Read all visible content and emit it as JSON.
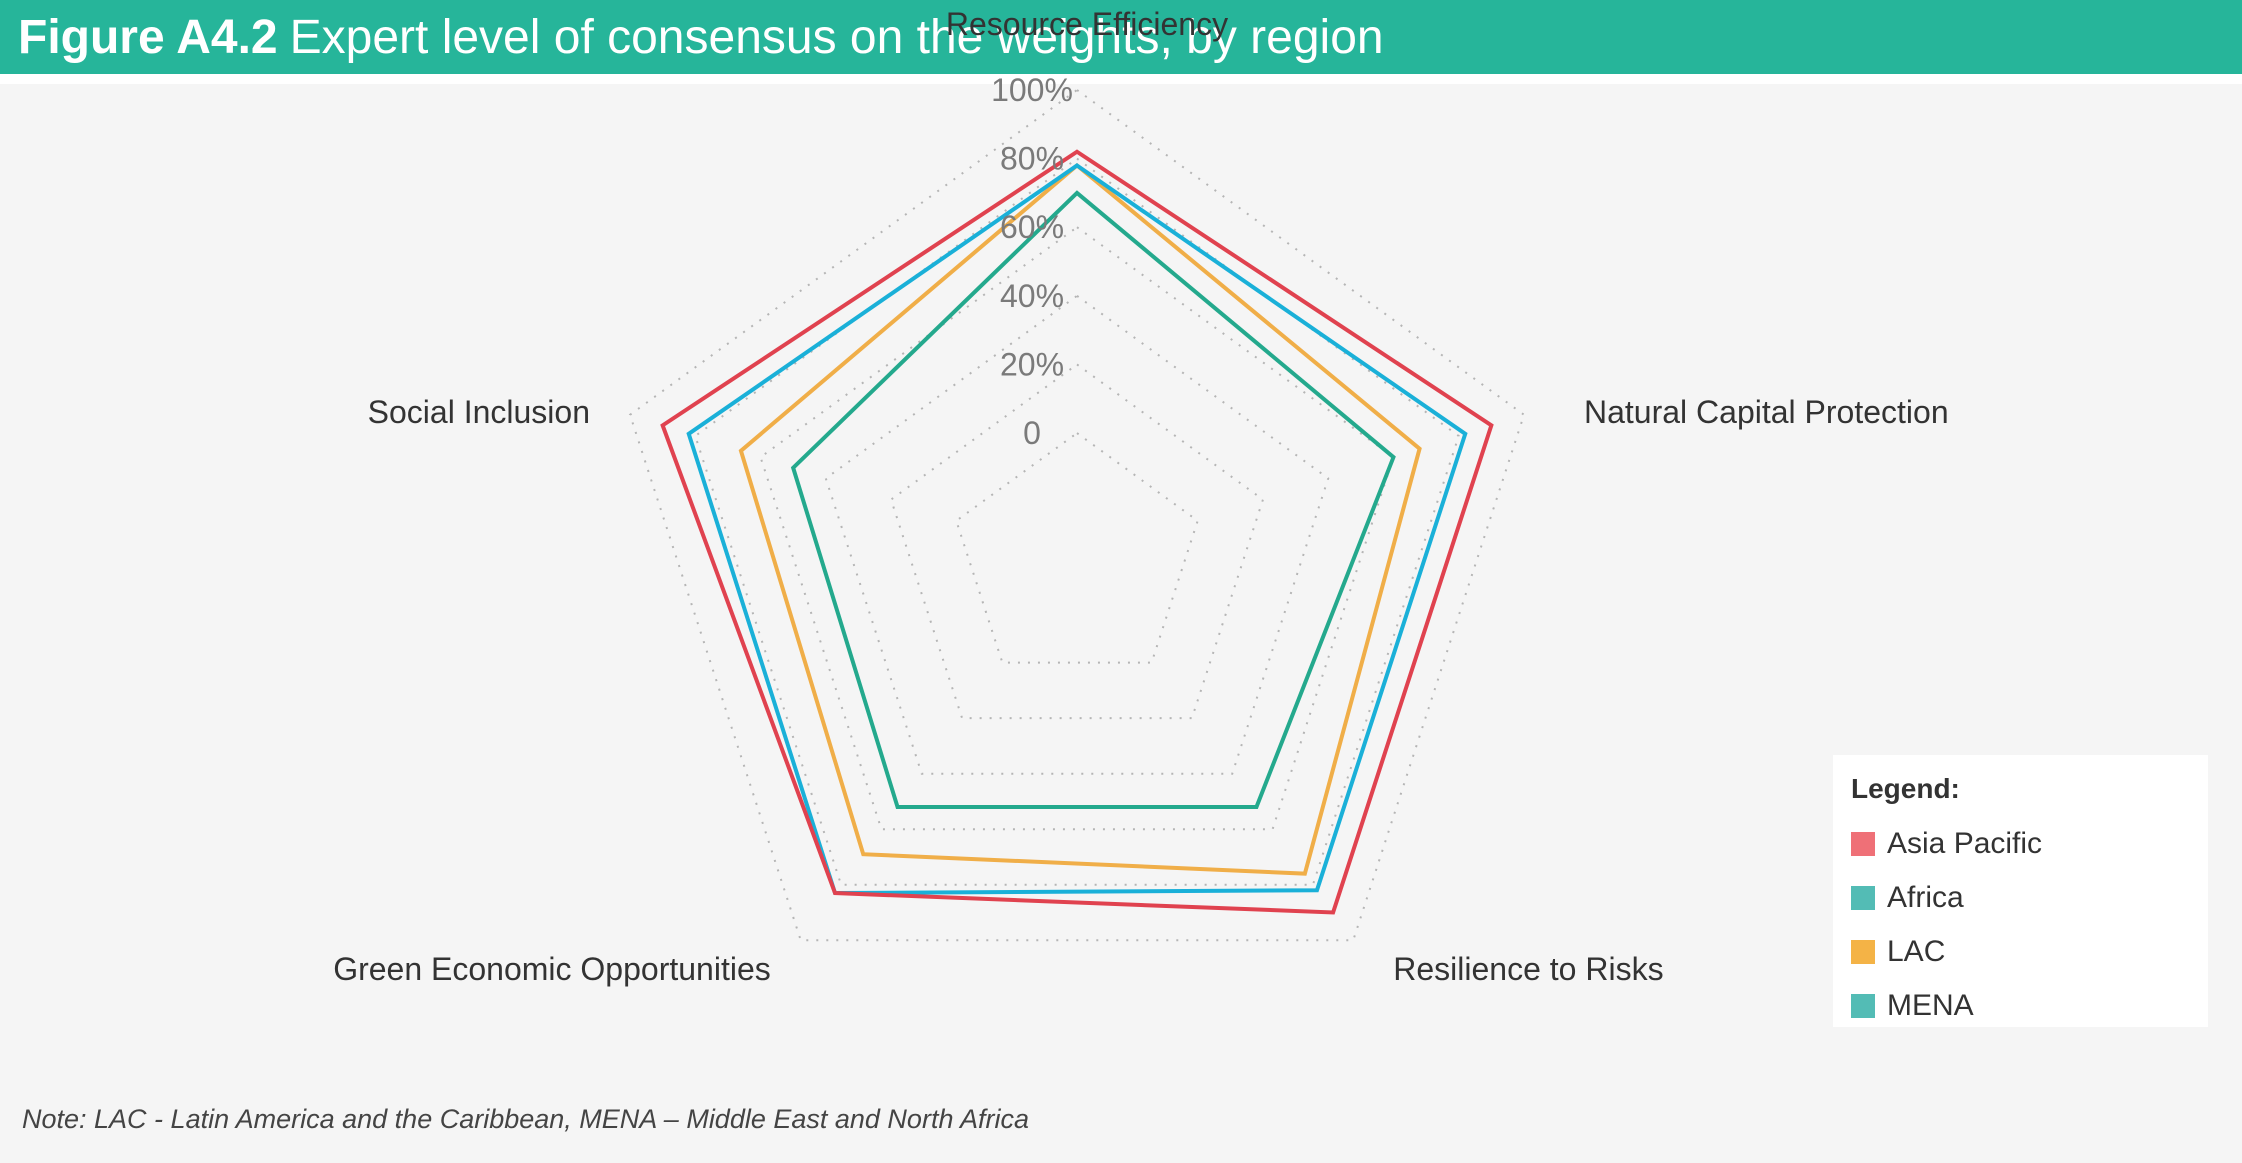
{
  "figure": {
    "number": "Figure A4.2",
    "title": "Expert level of consensus on the weights, by region"
  },
  "note": "Note: LAC - Latin America and the Caribbean, MENA – Middle East and North Africa",
  "legend": {
    "title": "Legend:",
    "position": "bottom-right"
  },
  "chart_data": {
    "type": "radar",
    "axes": [
      "Resource Efficiency",
      "Natural Capital Protection",
      "Resilience to Risks",
      "Green Economic Opportunities",
      "Social Inclusion"
    ],
    "axis_labels": [
      "Resource Efficiency",
      "Natural Capital Protection",
      "Resilience to Risks",
      "Green Economic Opportunities",
      "Social Inclusion"
    ],
    "tick_labels": [
      "0",
      "20%",
      "40%",
      "60%",
      "80%",
      "100%"
    ],
    "range": [
      0,
      100
    ],
    "grid": "dotted",
    "series": [
      {
        "name": "Asia Pacific",
        "color": "#e0424f",
        "legend_color": "#ef7077",
        "values": [
          82,
          90,
          90,
          83,
          90
        ]
      },
      {
        "name": "Africa",
        "color": "#1ab0d8",
        "legend_color": "#53bcb5",
        "values": [
          78,
          82,
          82,
          83,
          82
        ]
      },
      {
        "name": "LAC",
        "color": "#f0ae48",
        "legend_color": "#f4b346",
        "values": [
          78,
          68,
          76,
          69,
          66
        ]
      },
      {
        "name": "MENA",
        "color": "#24a98d",
        "legend_color": "#53bcb5",
        "values": [
          70,
          60,
          52,
          52,
          50
        ]
      }
    ]
  }
}
